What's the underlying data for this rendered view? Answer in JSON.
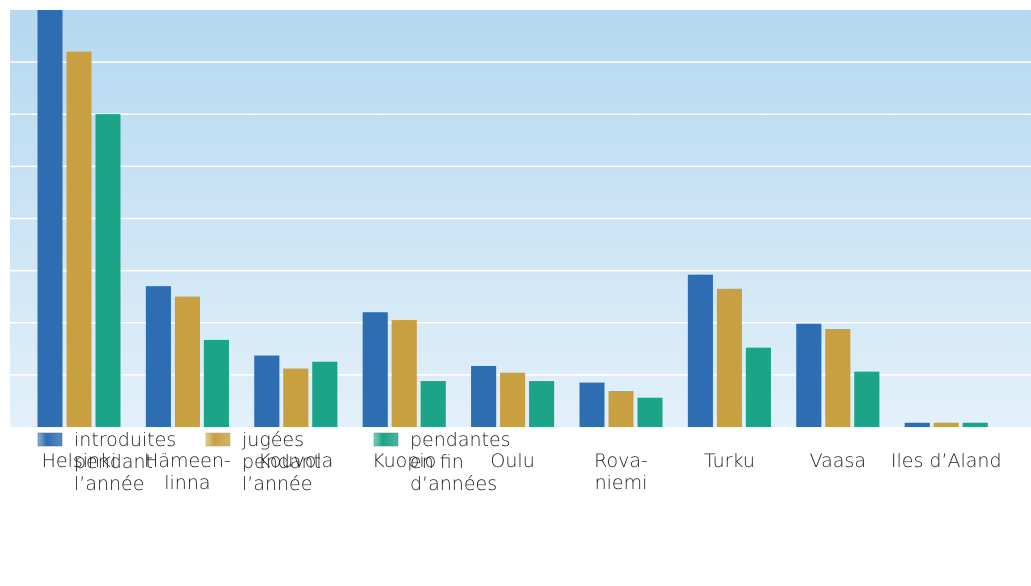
{
  "chart_data": {
    "type": "bar",
    "categories": [
      "Helsinki",
      "Hämeen-\nlinna",
      "Kouvola",
      "Kuopio",
      "Oulu",
      "Rova-\nniemi",
      "Turku",
      "Vaasa",
      "Iles d’Aland"
    ],
    "series": [
      {
        "name": "introduites\npendant\nl’année",
        "color": "#2f6db3",
        "values": [
          8.0,
          2.7,
          1.37,
          2.2,
          1.17,
          0.85,
          2.92,
          1.98,
          0.08
        ]
      },
      {
        "name": "jugées\npendant\nl’année",
        "color": "#c9a041",
        "values": [
          7.2,
          2.5,
          1.12,
          2.05,
          1.04,
          0.69,
          2.65,
          1.88,
          0.08
        ]
      },
      {
        "name": "pendantes\nen fin\nd’années",
        "color": "#1ba487",
        "values": [
          6.0,
          1.67,
          1.25,
          0.88,
          0.88,
          0.56,
          1.52,
          1.06,
          0.08
        ]
      }
    ],
    "ylim": [
      0,
      8
    ],
    "grid_lines": [
      1,
      2,
      3,
      4,
      5,
      6,
      7
    ],
    "grid": true,
    "legend": "bottom-left"
  }
}
